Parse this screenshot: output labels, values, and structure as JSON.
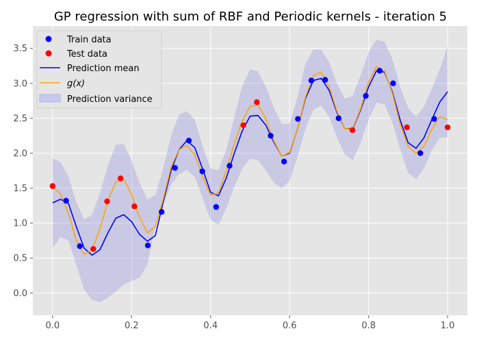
{
  "chart_data": {
    "type": "line",
    "title": "GP regression with sum of RBF and Periodic kernels - iteration 5",
    "xlabel": "",
    "ylabel": "",
    "xlim": [
      -0.05,
      1.05
    ],
    "ylim": [
      -0.32,
      3.82
    ],
    "xticks": [
      "0.0",
      "0.2",
      "0.4",
      "0.6",
      "0.8",
      "1.0"
    ],
    "yticks": [
      "0.0",
      "0.5",
      "1.0",
      "1.5",
      "2.0",
      "2.5",
      "3.0",
      "3.5"
    ],
    "grid": true,
    "legend_position": "upper-left",
    "legend": {
      "train": "Train data",
      "test": "Test data",
      "mean": "Prediction mean",
      "g": "g(x)",
      "variance": "Prediction variance"
    },
    "colors": {
      "train": "#0000ff",
      "test": "#ff0000",
      "mean": "#0000ff",
      "g": "#ffa500",
      "variance": "#8080e0",
      "background": "#e5e5e5",
      "grid": "#ffffff"
    },
    "train_points": [
      [
        0.034,
        1.32
      ],
      [
        0.069,
        0.67
      ],
      [
        0.241,
        0.68
      ],
      [
        0.276,
        1.16
      ],
      [
        0.31,
        1.79
      ],
      [
        0.345,
        2.18
      ],
      [
        0.379,
        1.74
      ],
      [
        0.414,
        1.23
      ],
      [
        0.448,
        1.82
      ],
      [
        0.552,
        2.25
      ],
      [
        0.586,
        1.88
      ],
      [
        0.621,
        2.49
      ],
      [
        0.655,
        3.04
      ],
      [
        0.69,
        3.05
      ],
      [
        0.724,
        2.5
      ],
      [
        0.793,
        2.82
      ],
      [
        0.828,
        3.18
      ],
      [
        0.862,
        3.0
      ],
      [
        0.931,
        2.0
      ],
      [
        0.966,
        2.49
      ]
    ],
    "test_points": [
      [
        0.0,
        1.53
      ],
      [
        0.103,
        0.63
      ],
      [
        0.138,
        1.31
      ],
      [
        0.172,
        1.64
      ],
      [
        0.207,
        1.24
      ],
      [
        0.483,
        2.4
      ],
      [
        0.517,
        2.73
      ],
      [
        0.759,
        2.33
      ],
      [
        0.897,
        2.37
      ],
      [
        1.0,
        2.37
      ]
    ],
    "mean": [
      [
        0.0,
        1.29
      ],
      [
        0.02,
        1.34
      ],
      [
        0.04,
        1.28
      ],
      [
        0.06,
        0.95
      ],
      [
        0.08,
        0.64
      ],
      [
        0.1,
        0.54
      ],
      [
        0.12,
        0.62
      ],
      [
        0.14,
        0.86
      ],
      [
        0.16,
        1.07
      ],
      [
        0.18,
        1.12
      ],
      [
        0.2,
        1.02
      ],
      [
        0.22,
        0.84
      ],
      [
        0.24,
        0.74
      ],
      [
        0.26,
        0.82
      ],
      [
        0.28,
        1.3
      ],
      [
        0.3,
        1.75
      ],
      [
        0.32,
        2.05
      ],
      [
        0.34,
        2.18
      ],
      [
        0.36,
        2.08
      ],
      [
        0.38,
        1.77
      ],
      [
        0.4,
        1.44
      ],
      [
        0.42,
        1.39
      ],
      [
        0.44,
        1.65
      ],
      [
        0.46,
        2.0
      ],
      [
        0.48,
        2.32
      ],
      [
        0.5,
        2.53
      ],
      [
        0.52,
        2.54
      ],
      [
        0.54,
        2.4
      ],
      [
        0.56,
        2.16
      ],
      [
        0.58,
        1.96
      ],
      [
        0.6,
        2.0
      ],
      [
        0.62,
        2.35
      ],
      [
        0.64,
        2.78
      ],
      [
        0.66,
        3.04
      ],
      [
        0.68,
        3.07
      ],
      [
        0.7,
        2.9
      ],
      [
        0.72,
        2.58
      ],
      [
        0.74,
        2.35
      ],
      [
        0.76,
        2.35
      ],
      [
        0.78,
        2.62
      ],
      [
        0.8,
        2.95
      ],
      [
        0.82,
        3.18
      ],
      [
        0.84,
        3.16
      ],
      [
        0.86,
        2.88
      ],
      [
        0.88,
        2.47
      ],
      [
        0.9,
        2.15
      ],
      [
        0.92,
        2.07
      ],
      [
        0.94,
        2.22
      ],
      [
        0.96,
        2.48
      ],
      [
        0.98,
        2.73
      ],
      [
        1.0,
        2.88
      ]
    ],
    "g": [
      [
        0.0,
        1.52
      ],
      [
        0.02,
        1.42
      ],
      [
        0.04,
        1.14
      ],
      [
        0.06,
        0.75
      ],
      [
        0.08,
        0.55
      ],
      [
        0.1,
        0.62
      ],
      [
        0.12,
        0.92
      ],
      [
        0.14,
        1.32
      ],
      [
        0.16,
        1.59
      ],
      [
        0.18,
        1.63
      ],
      [
        0.2,
        1.41
      ],
      [
        0.22,
        1.08
      ],
      [
        0.24,
        0.86
      ],
      [
        0.26,
        0.95
      ],
      [
        0.28,
        1.34
      ],
      [
        0.3,
        1.8
      ],
      [
        0.32,
        2.05
      ],
      [
        0.34,
        2.11
      ],
      [
        0.36,
        1.98
      ],
      [
        0.38,
        1.66
      ],
      [
        0.4,
        1.4
      ],
      [
        0.42,
        1.43
      ],
      [
        0.44,
        1.75
      ],
      [
        0.46,
        2.14
      ],
      [
        0.48,
        2.46
      ],
      [
        0.5,
        2.67
      ],
      [
        0.52,
        2.69
      ],
      [
        0.54,
        2.49
      ],
      [
        0.56,
        2.18
      ],
      [
        0.58,
        1.96
      ],
      [
        0.6,
        2.01
      ],
      [
        0.62,
        2.35
      ],
      [
        0.64,
        2.8
      ],
      [
        0.66,
        3.11
      ],
      [
        0.68,
        3.16
      ],
      [
        0.7,
        2.95
      ],
      [
        0.72,
        2.6
      ],
      [
        0.74,
        2.35
      ],
      [
        0.76,
        2.36
      ],
      [
        0.78,
        2.64
      ],
      [
        0.8,
        3.02
      ],
      [
        0.82,
        3.24
      ],
      [
        0.84,
        3.18
      ],
      [
        0.86,
        2.86
      ],
      [
        0.88,
        2.41
      ],
      [
        0.9,
        2.1
      ],
      [
        0.92,
        2.0
      ],
      [
        0.94,
        2.1
      ],
      [
        0.96,
        2.34
      ],
      [
        0.98,
        2.52
      ],
      [
        1.0,
        2.48
      ]
    ],
    "variance_upper": [
      [
        0.0,
        1.93
      ],
      [
        0.02,
        1.87
      ],
      [
        0.04,
        1.67
      ],
      [
        0.06,
        1.3
      ],
      [
        0.08,
        1.05
      ],
      [
        0.1,
        1.12
      ],
      [
        0.12,
        1.43
      ],
      [
        0.14,
        1.82
      ],
      [
        0.16,
        2.12
      ],
      [
        0.18,
        2.13
      ],
      [
        0.2,
        1.9
      ],
      [
        0.22,
        1.58
      ],
      [
        0.24,
        1.34
      ],
      [
        0.26,
        1.4
      ],
      [
        0.28,
        1.78
      ],
      [
        0.3,
        2.25
      ],
      [
        0.32,
        2.55
      ],
      [
        0.34,
        2.6
      ],
      [
        0.36,
        2.48
      ],
      [
        0.38,
        2.1
      ],
      [
        0.4,
        1.78
      ],
      [
        0.42,
        1.76
      ],
      [
        0.44,
        2.05
      ],
      [
        0.46,
        2.52
      ],
      [
        0.48,
        2.96
      ],
      [
        0.5,
        3.2
      ],
      [
        0.52,
        3.17
      ],
      [
        0.54,
        2.95
      ],
      [
        0.56,
        2.65
      ],
      [
        0.58,
        2.42
      ],
      [
        0.6,
        2.42
      ],
      [
        0.62,
        2.8
      ],
      [
        0.64,
        3.28
      ],
      [
        0.66,
        3.48
      ],
      [
        0.68,
        3.48
      ],
      [
        0.7,
        3.3
      ],
      [
        0.72,
        3.0
      ],
      [
        0.74,
        2.78
      ],
      [
        0.76,
        2.82
      ],
      [
        0.78,
        3.12
      ],
      [
        0.8,
        3.45
      ],
      [
        0.82,
        3.62
      ],
      [
        0.84,
        3.6
      ],
      [
        0.86,
        3.35
      ],
      [
        0.88,
        2.95
      ],
      [
        0.9,
        2.65
      ],
      [
        0.92,
        2.52
      ],
      [
        0.94,
        2.66
      ],
      [
        0.96,
        2.92
      ],
      [
        0.98,
        3.2
      ],
      [
        1.0,
        3.53
      ]
    ],
    "variance_lower": [
      [
        0.0,
        0.65
      ],
      [
        0.02,
        0.8
      ],
      [
        0.04,
        0.75
      ],
      [
        0.06,
        0.4
      ],
      [
        0.08,
        0.05
      ],
      [
        0.1,
        -0.1
      ],
      [
        0.12,
        -0.13
      ],
      [
        0.14,
        -0.07
      ],
      [
        0.16,
        0.02
      ],
      [
        0.18,
        0.12
      ],
      [
        0.2,
        0.17
      ],
      [
        0.22,
        0.22
      ],
      [
        0.24,
        0.4
      ],
      [
        0.26,
        0.95
      ],
      [
        0.28,
        1.27
      ],
      [
        0.3,
        1.55
      ],
      [
        0.32,
        1.7
      ],
      [
        0.34,
        1.76
      ],
      [
        0.36,
        1.66
      ],
      [
        0.38,
        1.35
      ],
      [
        0.4,
        1.05
      ],
      [
        0.42,
        0.97
      ],
      [
        0.44,
        1.22
      ],
      [
        0.46,
        1.52
      ],
      [
        0.48,
        1.78
      ],
      [
        0.5,
        1.92
      ],
      [
        0.52,
        1.9
      ],
      [
        0.54,
        1.75
      ],
      [
        0.56,
        1.58
      ],
      [
        0.58,
        1.5
      ],
      [
        0.6,
        1.6
      ],
      [
        0.62,
        1.95
      ],
      [
        0.64,
        2.35
      ],
      [
        0.66,
        2.62
      ],
      [
        0.68,
        2.68
      ],
      [
        0.7,
        2.52
      ],
      [
        0.72,
        2.22
      ],
      [
        0.74,
        1.98
      ],
      [
        0.76,
        1.9
      ],
      [
        0.78,
        2.15
      ],
      [
        0.8,
        2.48
      ],
      [
        0.82,
        2.72
      ],
      [
        0.84,
        2.7
      ],
      [
        0.86,
        2.44
      ],
      [
        0.88,
        2.05
      ],
      [
        0.9,
        1.72
      ],
      [
        0.92,
        1.63
      ],
      [
        0.94,
        1.78
      ],
      [
        0.96,
        2.04
      ],
      [
        0.98,
        2.22
      ],
      [
        1.0,
        2.23
      ]
    ]
  }
}
